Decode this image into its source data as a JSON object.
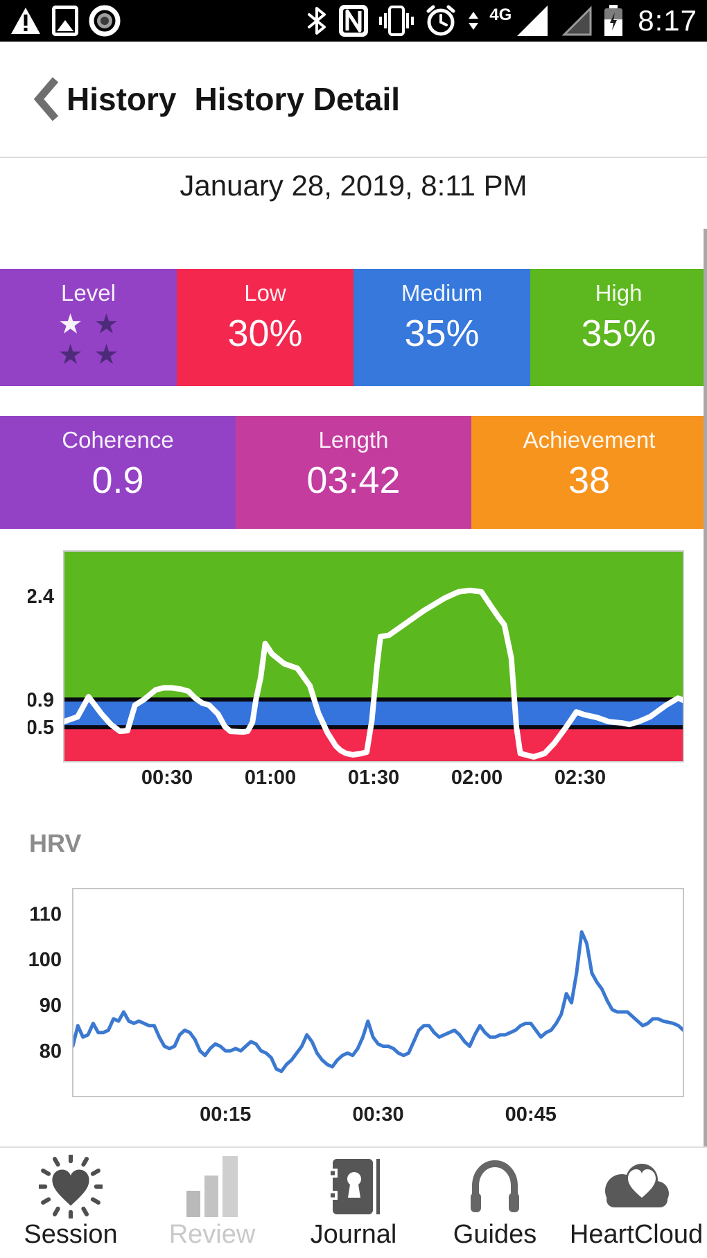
{
  "status_bar": {
    "time": "8:17",
    "network_label": "4G",
    "left_icons": [
      "warning-icon",
      "photo-icon",
      "screen-record-icon"
    ],
    "right_icons": [
      "bluetooth-icon",
      "nfc-icon",
      "vibrate-icon",
      "alarm-icon",
      "data-arrows-icon",
      "signal-full-icon",
      "signal-empty-icon",
      "battery-charging-icon"
    ]
  },
  "header": {
    "back_label": "History",
    "title": "History Detail"
  },
  "session": {
    "datetime": "January 28, 2019, 8:11 PM"
  },
  "stats_row1": {
    "cells": [
      {
        "label": "Level",
        "type": "stars",
        "color": "#9342C5",
        "stars": [
          "filled",
          "empty",
          "empty",
          "empty"
        ],
        "star_filled_color": "#F8F3FB",
        "star_empty_color": "#4E2A7B"
      },
      {
        "label": "Low",
        "value": "30%",
        "color": "#F4284E"
      },
      {
        "label": "Medium",
        "value": "35%",
        "color": "#3678DB"
      },
      {
        "label": "High",
        "value": "35%",
        "color": "#5DB71E"
      }
    ]
  },
  "stats_row2": {
    "cells": [
      {
        "label": "Coherence",
        "value": "0.9",
        "color": "#9342C5"
      },
      {
        "label": "Length",
        "value": "03:42",
        "color": "#C33C9E"
      },
      {
        "label": "Achievement",
        "value": "38",
        "color": "#F7941E"
      }
    ]
  },
  "hrv_section": {
    "title": "HRV"
  },
  "chart_data": [
    {
      "type": "line",
      "title": "Coherence over time with low/medium/high zones",
      "x_range": [
        0,
        180
      ],
      "y_range": [
        0,
        3.05
      ],
      "x_ticks": [
        {
          "label": "00:30",
          "value": 30
        },
        {
          "label": "01:00",
          "value": 60
        },
        {
          "label": "01:30",
          "value": 90
        },
        {
          "label": "02:00",
          "value": 120
        },
        {
          "label": "02:30",
          "value": 150
        }
      ],
      "y_ticks": [
        {
          "label": "2.4",
          "value": 2.4
        },
        {
          "label": "0.9",
          "value": 0.9
        },
        {
          "label": "0.5",
          "value": 0.5
        }
      ],
      "zones": [
        {
          "from": 0,
          "to": 0.5,
          "color": "#F3294E",
          "name": "low"
        },
        {
          "from": 0.5,
          "to": 0.9,
          "color": "#3474DC",
          "name": "medium"
        },
        {
          "from": 0.9,
          "to": 3.05,
          "color": "#5CB81F",
          "name": "high"
        }
      ],
      "zone_lines": [
        0.5,
        0.9
      ],
      "zone_line_color": "#0A0A14",
      "line_color": "#FFFFFF",
      "border_color": "#C9C9C9",
      "points": [
        [
          0,
          0.58
        ],
        [
          4,
          0.65
        ],
        [
          7.2,
          0.94
        ],
        [
          11,
          0.69
        ],
        [
          13.7,
          0.54
        ],
        [
          16.3,
          0.44
        ],
        [
          18.5,
          0.45
        ],
        [
          20.7,
          0.82
        ],
        [
          23.3,
          0.9
        ],
        [
          26.7,
          1.04
        ],
        [
          29.1,
          1.07
        ],
        [
          31.3,
          1.07
        ],
        [
          34.1,
          1.05
        ],
        [
          36.2,
          1.02
        ],
        [
          38.2,
          0.92
        ],
        [
          40.2,
          0.85
        ],
        [
          42.2,
          0.82
        ],
        [
          44.8,
          0.69
        ],
        [
          46.8,
          0.51
        ],
        [
          48.4,
          0.44
        ],
        [
          52.2,
          0.43
        ],
        [
          53.4,
          0.44
        ],
        [
          54.8,
          0.57
        ],
        [
          55.8,
          0.89
        ],
        [
          57.2,
          1.22
        ],
        [
          58.5,
          1.71
        ],
        [
          60.5,
          1.56
        ],
        [
          64,
          1.42
        ],
        [
          67.9,
          1.35
        ],
        [
          71.5,
          1.1
        ],
        [
          74,
          0.7
        ],
        [
          76.6,
          0.42
        ],
        [
          79,
          0.23
        ],
        [
          80.5,
          0.16
        ],
        [
          82,
          0.12
        ],
        [
          84,
          0.1
        ],
        [
          86.6,
          0.12
        ],
        [
          88,
          0.14
        ],
        [
          89.5,
          0.6
        ],
        [
          91,
          1.4
        ],
        [
          92,
          1.81
        ],
        [
          94.4,
          1.83
        ],
        [
          98.7,
          1.98
        ],
        [
          104.7,
          2.19
        ],
        [
          110.7,
          2.37
        ],
        [
          114.7,
          2.46
        ],
        [
          118,
          2.48
        ],
        [
          121.3,
          2.46
        ],
        [
          123.7,
          2.28
        ],
        [
          126.2,
          2.1
        ],
        [
          128,
          1.98
        ],
        [
          130,
          1.5
        ],
        [
          131.5,
          0.5
        ],
        [
          132.6,
          0.12
        ],
        [
          136.5,
          0.07
        ],
        [
          139.7,
          0.12
        ],
        [
          142.5,
          0.27
        ],
        [
          145.9,
          0.5
        ],
        [
          148.9,
          0.72
        ],
        [
          151.2,
          0.68
        ],
        [
          154.9,
          0.64
        ],
        [
          158.3,
          0.58
        ],
        [
          162.3,
          0.56
        ],
        [
          164.3,
          0.54
        ],
        [
          167,
          0.58
        ],
        [
          170.3,
          0.65
        ],
        [
          175,
          0.82
        ],
        [
          178.4,
          0.92
        ],
        [
          180,
          0.89
        ]
      ]
    },
    {
      "type": "line",
      "title": "HRV",
      "x_range": [
        0,
        60
      ],
      "y_range": [
        70,
        115.5
      ],
      "x_ticks": [
        {
          "label": "00:15",
          "value": 15
        },
        {
          "label": "00:30",
          "value": 30
        },
        {
          "label": "00:45",
          "value": 45
        }
      ],
      "y_ticks": [
        {
          "label": "110",
          "value": 110
        },
        {
          "label": "100",
          "value": 100
        },
        {
          "label": "90",
          "value": 90
        },
        {
          "label": "80",
          "value": 80
        }
      ],
      "background": "#FFFFFF",
      "line_color": "#3B79D1",
      "border_color": "#C6C6C6",
      "points": [
        [
          0,
          81
        ],
        [
          0.5,
          85.5
        ],
        [
          1,
          83
        ],
        [
          1.5,
          83.5
        ],
        [
          2,
          86
        ],
        [
          2.5,
          84
        ],
        [
          3,
          84
        ],
        [
          3.5,
          84.5
        ],
        [
          4,
          87
        ],
        [
          4.5,
          86.5
        ],
        [
          5,
          88.5
        ],
        [
          5.5,
          86.5
        ],
        [
          6,
          86
        ],
        [
          6.5,
          86.5
        ],
        [
          7,
          86
        ],
        [
          7.5,
          85.5
        ],
        [
          8,
          85.5
        ],
        [
          8.5,
          83
        ],
        [
          9,
          81
        ],
        [
          9.5,
          80.5
        ],
        [
          10,
          81
        ],
        [
          10.5,
          83.5
        ],
        [
          11,
          84.5
        ],
        [
          11.5,
          84
        ],
        [
          12,
          82.5
        ],
        [
          12.5,
          80
        ],
        [
          13,
          79
        ],
        [
          13.5,
          80.5
        ],
        [
          14,
          81.5
        ],
        [
          14.5,
          81
        ],
        [
          15,
          80
        ],
        [
          15.5,
          80
        ],
        [
          16,
          80.5
        ],
        [
          16.5,
          80
        ],
        [
          17,
          81
        ],
        [
          17.5,
          82
        ],
        [
          18,
          81.5
        ],
        [
          18.5,
          80
        ],
        [
          19,
          79.5
        ],
        [
          19.5,
          78.5
        ],
        [
          20,
          76
        ],
        [
          20.5,
          75.5
        ],
        [
          21,
          77
        ],
        [
          21.5,
          78
        ],
        [
          22,
          79.5
        ],
        [
          22.5,
          81
        ],
        [
          23,
          83.5
        ],
        [
          23.5,
          82
        ],
        [
          24,
          79.5
        ],
        [
          24.5,
          78
        ],
        [
          25,
          77
        ],
        [
          25.5,
          76.5
        ],
        [
          26,
          78
        ],
        [
          26.5,
          79
        ],
        [
          27,
          79.5
        ],
        [
          27.5,
          79
        ],
        [
          28,
          80.5
        ],
        [
          28.5,
          83
        ],
        [
          29,
          86.5
        ],
        [
          29.5,
          83
        ],
        [
          30,
          81.5
        ],
        [
          30.5,
          81
        ],
        [
          31,
          81
        ],
        [
          31.5,
          80.5
        ],
        [
          32,
          79.5
        ],
        [
          32.5,
          79
        ],
        [
          33,
          79.5
        ],
        [
          33.5,
          82
        ],
        [
          34,
          84.5
        ],
        [
          34.5,
          85.5
        ],
        [
          35,
          85.5
        ],
        [
          35.5,
          84
        ],
        [
          36,
          83
        ],
        [
          36.5,
          83.5
        ],
        [
          37,
          84
        ],
        [
          37.5,
          84.5
        ],
        [
          38,
          83.5
        ],
        [
          38.5,
          82
        ],
        [
          39,
          81
        ],
        [
          39.5,
          83.5
        ],
        [
          40,
          85.5
        ],
        [
          40.5,
          84
        ],
        [
          41,
          83
        ],
        [
          41.5,
          83
        ],
        [
          42,
          83.5
        ],
        [
          42.5,
          83.5
        ],
        [
          43,
          84
        ],
        [
          43.5,
          84.5
        ],
        [
          44,
          85.5
        ],
        [
          44.5,
          86
        ],
        [
          45,
          86
        ],
        [
          45.5,
          84.5
        ],
        [
          46,
          83
        ],
        [
          46.5,
          84
        ],
        [
          47,
          84.5
        ],
        [
          47.5,
          86
        ],
        [
          48,
          88
        ],
        [
          48.5,
          92.5
        ],
        [
          49,
          90.5
        ],
        [
          49.5,
          97
        ],
        [
          50,
          106
        ],
        [
          50.5,
          103.5
        ],
        [
          51,
          97
        ],
        [
          51.5,
          95
        ],
        [
          52,
          93.5
        ],
        [
          52.5,
          91
        ],
        [
          53,
          89
        ],
        [
          53.5,
          88.5
        ],
        [
          54,
          88.5
        ],
        [
          54.5,
          88.5
        ],
        [
          55,
          87.5
        ],
        [
          55.5,
          86.5
        ],
        [
          56,
          85.5
        ],
        [
          56.5,
          86
        ],
        [
          57,
          87
        ],
        [
          57.5,
          87
        ],
        [
          58,
          86.5
        ],
        [
          59,
          86
        ],
        [
          59.5,
          85.5
        ],
        [
          60,
          84.5
        ]
      ]
    }
  ],
  "bottom_nav": {
    "icon_color": "#4F4F4F",
    "disabled_color": "#C9C9C9",
    "review_bar_colors": [
      "#B9B9B9",
      "#C3C3C3",
      "#CFCFCF"
    ],
    "items": [
      {
        "label": "Session",
        "icon": "session-heart-icon",
        "state": "normal"
      },
      {
        "label": "Review",
        "icon": "review-bars-icon",
        "state": "disabled"
      },
      {
        "label": "Journal",
        "icon": "journal-icon",
        "state": "normal"
      },
      {
        "label": "Guides",
        "icon": "guides-headphones-icon",
        "state": "normal"
      },
      {
        "label": "HeartCloud",
        "icon": "heartcloud-icon",
        "state": "normal"
      }
    ]
  }
}
